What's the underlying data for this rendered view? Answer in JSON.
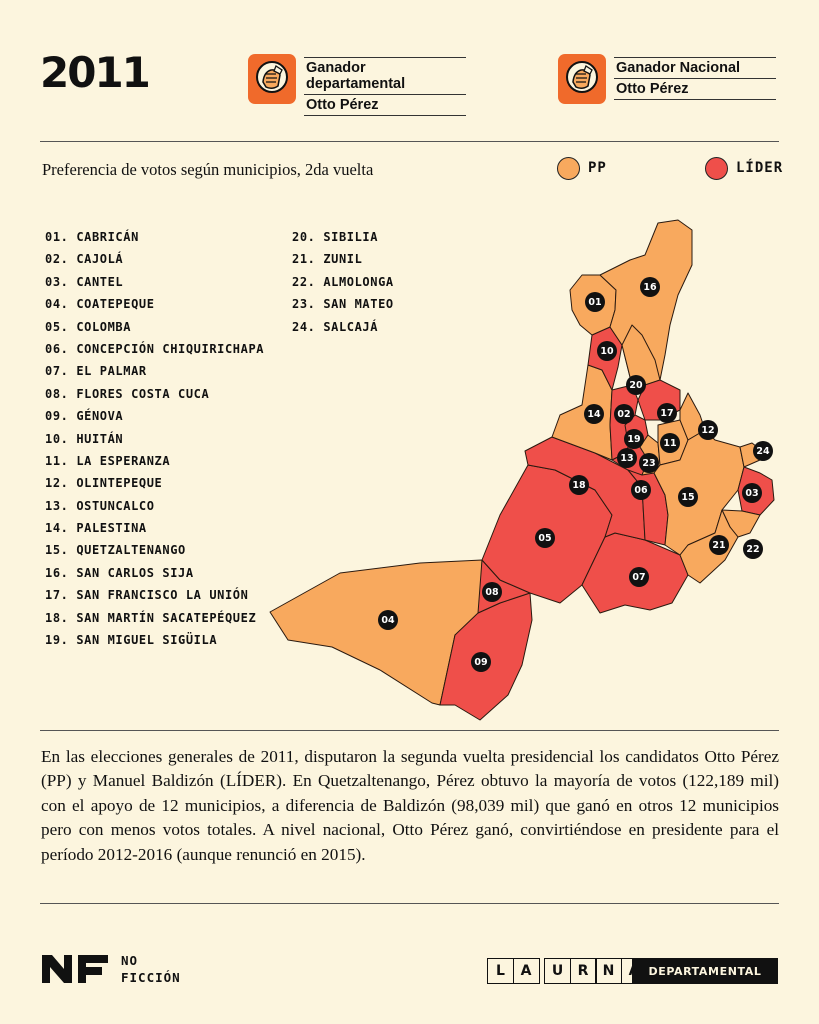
{
  "year": "2011",
  "winner_departmental": {
    "label": "Ganador departamental",
    "name": "Otto Pérez"
  },
  "winner_national": {
    "label": "Ganador Nacional",
    "name": "Otto Pérez"
  },
  "subtitle": "Preferencia de votos según municipios, 2da vuelta",
  "legend": [
    {
      "label": "PP",
      "color": "#f8a95e"
    },
    {
      "label": "LÍDER",
      "color": "#ef4f4a"
    }
  ],
  "municipalities": [
    {
      "num": "01",
      "name": "CABRICÁN",
      "winner": "PP"
    },
    {
      "num": "02",
      "name": "CAJOLÁ",
      "winner": "LÍDER"
    },
    {
      "num": "03",
      "name": "CANTEL",
      "winner": "LÍDER"
    },
    {
      "num": "04",
      "name": "COATEPEQUE",
      "winner": "PP"
    },
    {
      "num": "05",
      "name": "COLOMBA",
      "winner": "LÍDER"
    },
    {
      "num": "06",
      "name": "CONCEPCIÓN CHIQUIRICHAPA",
      "winner": "LÍDER"
    },
    {
      "num": "07",
      "name": "EL PALMAR",
      "winner": "LÍDER"
    },
    {
      "num": "08",
      "name": "FLORES COSTA CUCA",
      "winner": "LÍDER"
    },
    {
      "num": "09",
      "name": "GÉNOVA",
      "winner": "LÍDER"
    },
    {
      "num": "10",
      "name": "HUITÁN",
      "winner": "LÍDER"
    },
    {
      "num": "11",
      "name": "LA ESPERANZA",
      "winner": "PP"
    },
    {
      "num": "12",
      "name": "OLINTEPEQUE",
      "winner": "PP"
    },
    {
      "num": "13",
      "name": "OSTUNCALCO",
      "winner": "LÍDER"
    },
    {
      "num": "14",
      "name": "PALESTINA",
      "winner": "PP"
    },
    {
      "num": "15",
      "name": "QUETZALTENANGO",
      "winner": "PP"
    },
    {
      "num": "16",
      "name": "SAN CARLOS SIJA",
      "winner": "PP"
    },
    {
      "num": "17",
      "name": "SAN FRANCISCO LA UNIÓN",
      "winner": "LÍDER"
    },
    {
      "num": "18",
      "name": "SAN MARTÍN SACATEPÉQUEZ",
      "winner": "LÍDER"
    },
    {
      "num": "19",
      "name": "SAN MIGUEL SIGÜILA",
      "winner": "LÍDER"
    },
    {
      "num": "20",
      "name": "SIBILIA",
      "winner": "PP"
    },
    {
      "num": "21",
      "name": "ZUNIL",
      "winner": "PP"
    },
    {
      "num": "22",
      "name": "ALMOLONGA",
      "winner": "PP"
    },
    {
      "num": "23",
      "name": "SAN MATEO",
      "winner": "PP"
    },
    {
      "num": "24",
      "name": "SALCAJÁ",
      "winner": "PP"
    }
  ],
  "paragraph": "En las elecciones generales de 2011, disputaron la segunda vuelta presidencial los candidatos Otto Pérez (PP) y Manuel Baldizón (LÍDER). En Quetzaltenango, Pérez obtuvo la mayoría de votos (122,189 mil) con el apoyo de 12 municipios, a diferencia de Baldizón (98,039 mil) que ganó en otros 12 municipios pero con menos votos totales. A nivel nacional, Otto Pérez ganó, convirtiéndose en presidente para el período 2012-2016 (aunque renunció en 2015).",
  "footer": {
    "brand_line1": "NO",
    "brand_line2": "FICCIÓN",
    "urna_letters": [
      "L",
      "A",
      "U",
      "R",
      "N",
      "A"
    ],
    "departamental": "DEPARTAMENTAL"
  }
}
